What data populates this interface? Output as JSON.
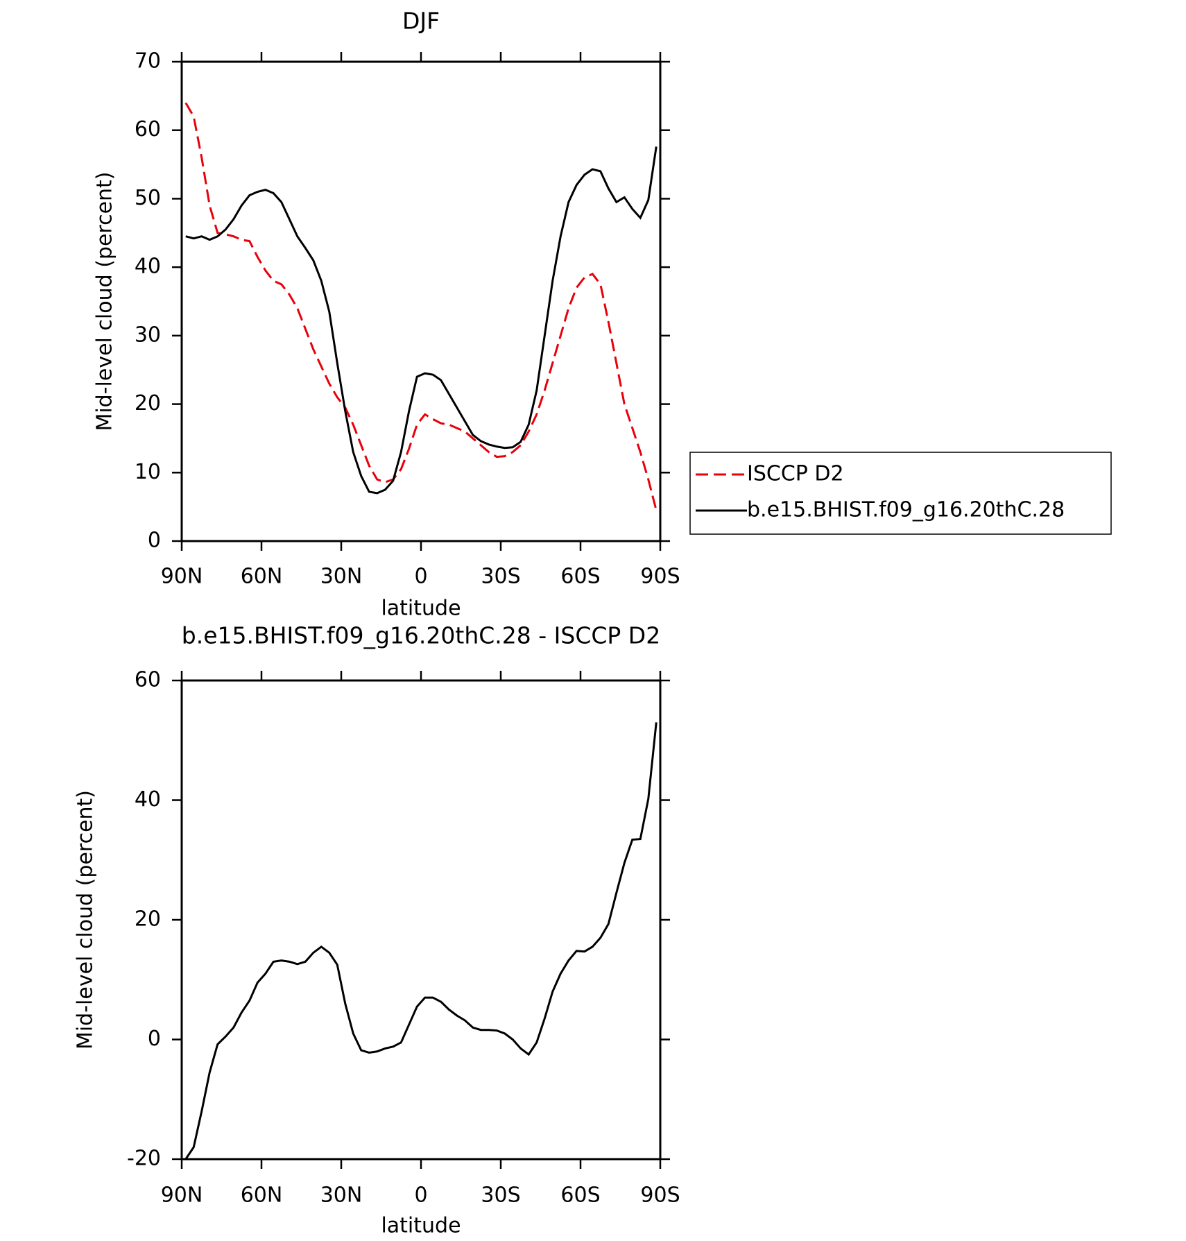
{
  "chart_data": [
    {
      "type": "line",
      "title": "DJF",
      "x_label": "latitude",
      "y_label": "Mid-level cloud (percent)",
      "x": [
        88.5,
        85.5,
        82.5,
        79.5,
        76.5,
        73.5,
        70.5,
        67.5,
        64.5,
        61.5,
        58.5,
        55.5,
        52.5,
        49.5,
        46.5,
        43.5,
        40.5,
        37.5,
        34.5,
        31.5,
        28.5,
        25.5,
        22.5,
        19.5,
        16.5,
        13.5,
        10.5,
        7.5,
        4.5,
        1.5,
        -1.5,
        -4.5,
        -7.5,
        -10.5,
        -13.5,
        -16.5,
        -19.5,
        -22.5,
        -25.5,
        -28.5,
        -31.5,
        -34.5,
        -37.5,
        -40.5,
        -43.5,
        -46.5,
        -49.5,
        -52.5,
        -55.5,
        -58.5,
        -61.5,
        -64.5,
        -67.5,
        -70.5,
        -73.5,
        -76.5,
        -79.5,
        -82.5,
        -85.5,
        -88.5
      ],
      "series": [
        {
          "name": "ISCCP D2",
          "color": "#e8000b",
          "dash": "dashed",
          "values": [
            64,
            62,
            56,
            49,
            45,
            44.8,
            44.5,
            44,
            43.8,
            41.5,
            39.5,
            38,
            37.5,
            36,
            34,
            31,
            28,
            25.5,
            23,
            21,
            19.5,
            17,
            14,
            11,
            9,
            8.6,
            9,
            10.5,
            13.5,
            17,
            18.5,
            17.8,
            17.2,
            17,
            16.5,
            16,
            15,
            14,
            13,
            12.3,
            12.4,
            13,
            14,
            16,
            18.5,
            22,
            26,
            30,
            34,
            37,
            38.5,
            39,
            37.5,
            32,
            26,
            20,
            16.5,
            13,
            9,
            4.5
          ]
        },
        {
          "name": "b.e15.BHIST.f09_g16.20thC.28",
          "color": "#000000",
          "dash": "solid",
          "values": [
            44.5,
            44.2,
            44.5,
            44,
            44.5,
            45.5,
            47,
            49,
            50.5,
            51,
            51.3,
            50.8,
            49.5,
            47,
            44.5,
            42.8,
            41,
            38,
            33.5,
            26,
            19,
            13,
            9.5,
            7.2,
            7,
            7.5,
            8.8,
            13,
            19,
            24,
            24.5,
            24.3,
            23.5,
            21.5,
            19.5,
            17.5,
            15.5,
            14.6,
            14.1,
            13.8,
            13.6,
            13.7,
            14.5,
            17,
            22,
            30,
            38,
            44.5,
            49.5,
            52,
            53.5,
            54.3,
            54,
            51.5,
            49.5,
            50.2,
            48.5,
            47.2,
            49.8,
            57.6
          ]
        }
      ],
      "xlim": [
        90,
        -90
      ],
      "xticks": [
        {
          "value": 90,
          "label": "90N"
        },
        {
          "value": 60,
          "label": "60N"
        },
        {
          "value": 30,
          "label": "30N"
        },
        0,
        {
          "value": -30,
          "label": "30S"
        },
        {
          "value": -60,
          "label": "60S"
        },
        {
          "value": -90,
          "label": "90S"
        }
      ],
      "ylim": [
        0,
        70
      ],
      "yticks": [
        0,
        10,
        20,
        30,
        40,
        50,
        60,
        70
      ],
      "legend": "right"
    },
    {
      "type": "line",
      "title": "b.e15.BHIST.f09_g16.20thC.28 - ISCCP D2",
      "x_label": "latitude",
      "y_label": "Mid-level cloud (percent)",
      "x": [
        88.5,
        85.5,
        82.5,
        79.5,
        76.5,
        73.5,
        70.5,
        67.5,
        64.5,
        61.5,
        58.5,
        55.5,
        52.5,
        49.5,
        46.5,
        43.5,
        40.5,
        37.5,
        34.5,
        31.5,
        28.5,
        25.5,
        22.5,
        19.5,
        16.5,
        13.5,
        10.5,
        7.5,
        4.5,
        1.5,
        -1.5,
        -4.5,
        -7.5,
        -10.5,
        -13.5,
        -16.5,
        -19.5,
        -22.5,
        -25.5,
        -28.5,
        -31.5,
        -34.5,
        -37.5,
        -40.5,
        -43.5,
        -46.5,
        -49.5,
        -52.5,
        -55.5,
        -58.5,
        -61.5,
        -64.5,
        -67.5,
        -70.5,
        -73.5,
        -76.5,
        -79.5,
        -82.5,
        -85.5,
        -88.5
      ],
      "series": [
        {
          "color": "#000000",
          "dash": "solid",
          "values": [
            -20,
            -18,
            -12,
            -5.5,
            -0.8,
            0.5,
            2,
            4.5,
            6.5,
            9.5,
            11,
            13,
            13.2,
            13,
            12.6,
            13,
            14.5,
            15.5,
            14.5,
            12.5,
            6,
            1,
            -1.8,
            -2.2,
            -2,
            -1.5,
            -1.2,
            -0.5,
            2.5,
            5.5,
            7,
            7,
            6.3,
            5,
            4,
            3.2,
            2,
            1.6,
            1.6,
            1.5,
            1,
            0,
            -1.5,
            -2.5,
            -0.5,
            3.5,
            8,
            11,
            13.2,
            14.8,
            14.7,
            15.5,
            17,
            19.3,
            24.5,
            29.5,
            33.4,
            33.5,
            40.2,
            53
          ]
        }
      ],
      "xlim": [
        90,
        -90
      ],
      "xticks": [
        {
          "value": 90,
          "label": "90N"
        },
        {
          "value": 60,
          "label": "60N"
        },
        {
          "value": 30,
          "label": "30N"
        },
        0,
        {
          "value": -30,
          "label": "30S"
        },
        {
          "value": -60,
          "label": "60S"
        },
        {
          "value": -90,
          "label": "90S"
        }
      ],
      "ylim": [
        -20,
        60
      ],
      "yticks": [
        -20,
        0,
        20,
        40,
        60
      ]
    }
  ]
}
